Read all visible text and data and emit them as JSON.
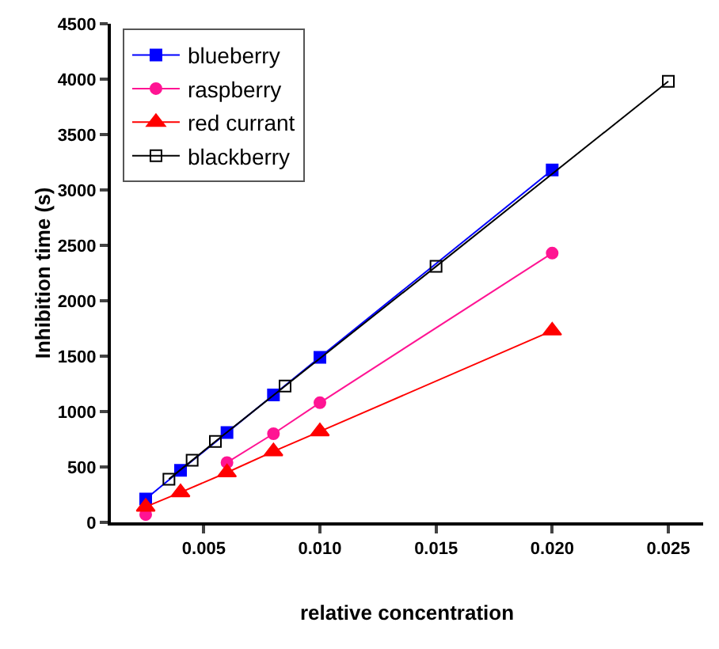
{
  "chart_data": {
    "type": "line",
    "xlabel": "relative concentration",
    "ylabel": "Inhibition time (s)",
    "xlim": [
      0.001,
      0.0265
    ],
    "xticks": [
      {
        "value": 0.005,
        "label": "0.005"
      },
      {
        "value": 0.01,
        "label": "0.010"
      },
      {
        "value": 0.015,
        "label": "0.015"
      },
      {
        "value": 0.02,
        "label": "0.020"
      },
      {
        "value": 0.025,
        "label": "0.025"
      }
    ],
    "ylim": [
      0,
      4500
    ],
    "yticks": [
      0,
      500,
      1000,
      1500,
      2000,
      2500,
      3000,
      3500,
      4000,
      4500
    ],
    "grid": false,
    "legend": "top left",
    "series": [
      {
        "name": "blueberry",
        "color": "#0000ff",
        "marker": "square",
        "x": [
          0.0025,
          0.004,
          0.006,
          0.008,
          0.01,
          0.02
        ],
        "values": [
          210,
          470,
          810,
          1150,
          1490,
          3180
        ]
      },
      {
        "name": "raspberry",
        "color": "#ff1493",
        "marker": "circle",
        "x": [
          0.0025,
          0.004,
          0.006,
          0.008,
          0.01,
          0.02
        ],
        "values": [
          70,
          null,
          540,
          800,
          1080,
          2430
        ]
      },
      {
        "name": "red currant",
        "color": "#ff0000",
        "marker": "triangle",
        "x": [
          0.0025,
          0.004,
          0.006,
          0.008,
          0.01,
          0.02
        ],
        "values": [
          140,
          270,
          450,
          640,
          820,
          1730
        ]
      },
      {
        "name": "blackberry",
        "color": "#000000",
        "marker": "square-open",
        "x": [
          0.0035,
          0.0045,
          0.0055,
          0.0085,
          0.015,
          0.025
        ],
        "values": [
          390,
          560,
          730,
          1230,
          2310,
          3980
        ]
      }
    ]
  }
}
